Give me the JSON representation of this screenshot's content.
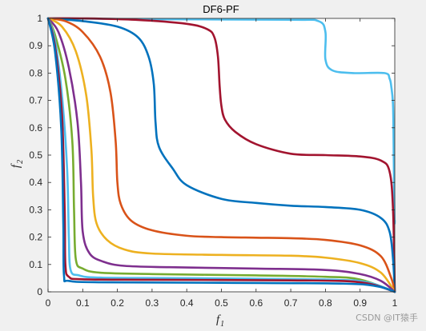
{
  "chart_data": {
    "type": "line",
    "title": "DF6-PF",
    "xlabel": {
      "main": "f",
      "sub": "1"
    },
    "ylabel": {
      "main": "f",
      "sub": "2"
    },
    "xlim": [
      0,
      1
    ],
    "ylim": [
      0,
      1
    ],
    "xticks": [
      0,
      0.1,
      0.2,
      0.3,
      0.4,
      0.5,
      0.6,
      0.7,
      0.8,
      0.9,
      1
    ],
    "yticks": [
      0,
      0.1,
      0.2,
      0.3,
      0.4,
      0.5,
      0.6,
      0.7,
      0.8,
      0.9,
      1
    ],
    "xtick_labels": [
      "0",
      "0.1",
      "0.2",
      "0.3",
      "0.4",
      "0.5",
      "0.6",
      "0.7",
      "0.8",
      "0.9",
      "1"
    ],
    "ytick_labels": [
      "0",
      "0.1",
      "0.2",
      "0.3",
      "0.4",
      "0.5",
      "0.6",
      "0.7",
      "0.8",
      "0.9",
      "1"
    ],
    "grid": false,
    "series": [
      {
        "color": "#4DBEEE",
        "points": [
          [
            0,
            1
          ],
          [
            0.3,
            0.997
          ],
          [
            0.7,
            0.995
          ],
          [
            0.78,
            0.99
          ],
          [
            0.8,
            0.95
          ],
          [
            0.8,
            0.85
          ],
          [
            0.82,
            0.81
          ],
          [
            0.88,
            0.8
          ],
          [
            0.97,
            0.8
          ],
          [
            0.985,
            0.78
          ],
          [
            0.99,
            0.75
          ],
          [
            0.995,
            0.68
          ],
          [
            0.997,
            0.5
          ],
          [
            0.999,
            0.27
          ],
          [
            1,
            0.26
          ]
        ]
      },
      {
        "color": "#A2142F",
        "points": [
          [
            0,
            1
          ],
          [
            0.1,
            1
          ],
          [
            0.25,
            0.995
          ],
          [
            0.4,
            0.98
          ],
          [
            0.46,
            0.96
          ],
          [
            0.48,
            0.93
          ],
          [
            0.49,
            0.86
          ],
          [
            0.495,
            0.75
          ],
          [
            0.5,
            0.68
          ],
          [
            0.51,
            0.63
          ],
          [
            0.54,
            0.585
          ],
          [
            0.6,
            0.54
          ],
          [
            0.7,
            0.505
          ],
          [
            0.8,
            0.5
          ],
          [
            0.9,
            0.495
          ],
          [
            0.96,
            0.48
          ],
          [
            0.985,
            0.44
          ],
          [
            0.995,
            0.3
          ],
          [
            1,
            0
          ]
        ]
      },
      {
        "color": "#0072BD",
        "points": [
          [
            0,
            1
          ],
          [
            0.1,
            0.99
          ],
          [
            0.2,
            0.97
          ],
          [
            0.26,
            0.93
          ],
          [
            0.29,
            0.86
          ],
          [
            0.305,
            0.76
          ],
          [
            0.31,
            0.62
          ],
          [
            0.32,
            0.53
          ],
          [
            0.36,
            0.45
          ],
          [
            0.4,
            0.39
          ],
          [
            0.5,
            0.34
          ],
          [
            0.6,
            0.325
          ],
          [
            0.7,
            0.315
          ],
          [
            0.8,
            0.31
          ],
          [
            0.9,
            0.3
          ],
          [
            0.96,
            0.27
          ],
          [
            0.985,
            0.22
          ],
          [
            0.995,
            0.12
          ],
          [
            1,
            0
          ]
        ]
      },
      {
        "color": "#D95319",
        "points": [
          [
            0,
            1
          ],
          [
            0.05,
            0.99
          ],
          [
            0.1,
            0.95
          ],
          [
            0.15,
            0.86
          ],
          [
            0.18,
            0.73
          ],
          [
            0.195,
            0.55
          ],
          [
            0.2,
            0.4
          ],
          [
            0.21,
            0.32
          ],
          [
            0.24,
            0.26
          ],
          [
            0.3,
            0.225
          ],
          [
            0.4,
            0.205
          ],
          [
            0.5,
            0.2
          ],
          [
            0.6,
            0.198
          ],
          [
            0.7,
            0.196
          ],
          [
            0.8,
            0.19
          ],
          [
            0.9,
            0.17
          ],
          [
            0.96,
            0.13
          ],
          [
            0.99,
            0.05
          ],
          [
            1,
            0
          ]
        ]
      },
      {
        "color": "#EDB120",
        "points": [
          [
            0,
            1
          ],
          [
            0.04,
            0.97
          ],
          [
            0.08,
            0.88
          ],
          [
            0.11,
            0.72
          ],
          [
            0.125,
            0.52
          ],
          [
            0.13,
            0.35
          ],
          [
            0.14,
            0.25
          ],
          [
            0.17,
            0.19
          ],
          [
            0.22,
            0.155
          ],
          [
            0.3,
            0.14
          ],
          [
            0.5,
            0.135
          ],
          [
            0.7,
            0.132
          ],
          [
            0.8,
            0.125
          ],
          [
            0.9,
            0.105
          ],
          [
            0.96,
            0.07
          ],
          [
            1,
            0
          ]
        ]
      },
      {
        "color": "#7E2F8E",
        "points": [
          [
            0,
            1
          ],
          [
            0.03,
            0.95
          ],
          [
            0.06,
            0.82
          ],
          [
            0.085,
            0.62
          ],
          [
            0.095,
            0.4
          ],
          [
            0.1,
            0.22
          ],
          [
            0.12,
            0.14
          ],
          [
            0.16,
            0.11
          ],
          [
            0.22,
            0.095
          ],
          [
            0.35,
            0.09
          ],
          [
            0.6,
            0.085
          ],
          [
            0.8,
            0.08
          ],
          [
            0.9,
            0.065
          ],
          [
            0.96,
            0.04
          ],
          [
            1,
            0
          ]
        ]
      },
      {
        "color": "#77AC30",
        "points": [
          [
            0,
            1
          ],
          [
            0.02,
            0.94
          ],
          [
            0.05,
            0.78
          ],
          [
            0.07,
            0.55
          ],
          [
            0.075,
            0.3
          ],
          [
            0.08,
            0.12
          ],
          [
            0.1,
            0.085
          ],
          [
            0.15,
            0.07
          ],
          [
            0.3,
            0.065
          ],
          [
            0.6,
            0.06
          ],
          [
            0.8,
            0.055
          ],
          [
            0.9,
            0.045
          ],
          [
            1,
            0
          ]
        ]
      },
      {
        "color": "#4DBEEE",
        "points": [
          [
            0,
            1
          ],
          [
            0.02,
            0.92
          ],
          [
            0.04,
            0.72
          ],
          [
            0.055,
            0.45
          ],
          [
            0.06,
            0.2
          ],
          [
            0.065,
            0.08
          ],
          [
            0.09,
            0.06
          ],
          [
            0.15,
            0.052
          ],
          [
            0.4,
            0.05
          ],
          [
            0.8,
            0.045
          ],
          [
            0.92,
            0.035
          ],
          [
            1,
            0
          ]
        ]
      },
      {
        "color": "#A2142F",
        "points": [
          [
            0,
            1
          ],
          [
            0.02,
            0.9
          ],
          [
            0.04,
            0.65
          ],
          [
            0.048,
            0.3
          ],
          [
            0.05,
            0.1
          ],
          [
            0.06,
            0.055
          ],
          [
            0.1,
            0.046
          ],
          [
            0.3,
            0.044
          ],
          [
            0.7,
            0.042
          ],
          [
            0.9,
            0.035
          ],
          [
            1,
            0
          ]
        ]
      },
      {
        "color": "#0072BD",
        "points": [
          [
            0,
            1
          ],
          [
            0.02,
            0.88
          ],
          [
            0.038,
            0.6
          ],
          [
            0.044,
            0.25
          ],
          [
            0.046,
            0.06
          ],
          [
            0.06,
            0.04
          ],
          [
            0.15,
            0.035
          ],
          [
            0.5,
            0.033
          ],
          [
            0.85,
            0.03
          ],
          [
            0.95,
            0.02
          ],
          [
            1,
            0
          ]
        ]
      }
    ]
  },
  "watermark": "CSDN @IT猿手"
}
